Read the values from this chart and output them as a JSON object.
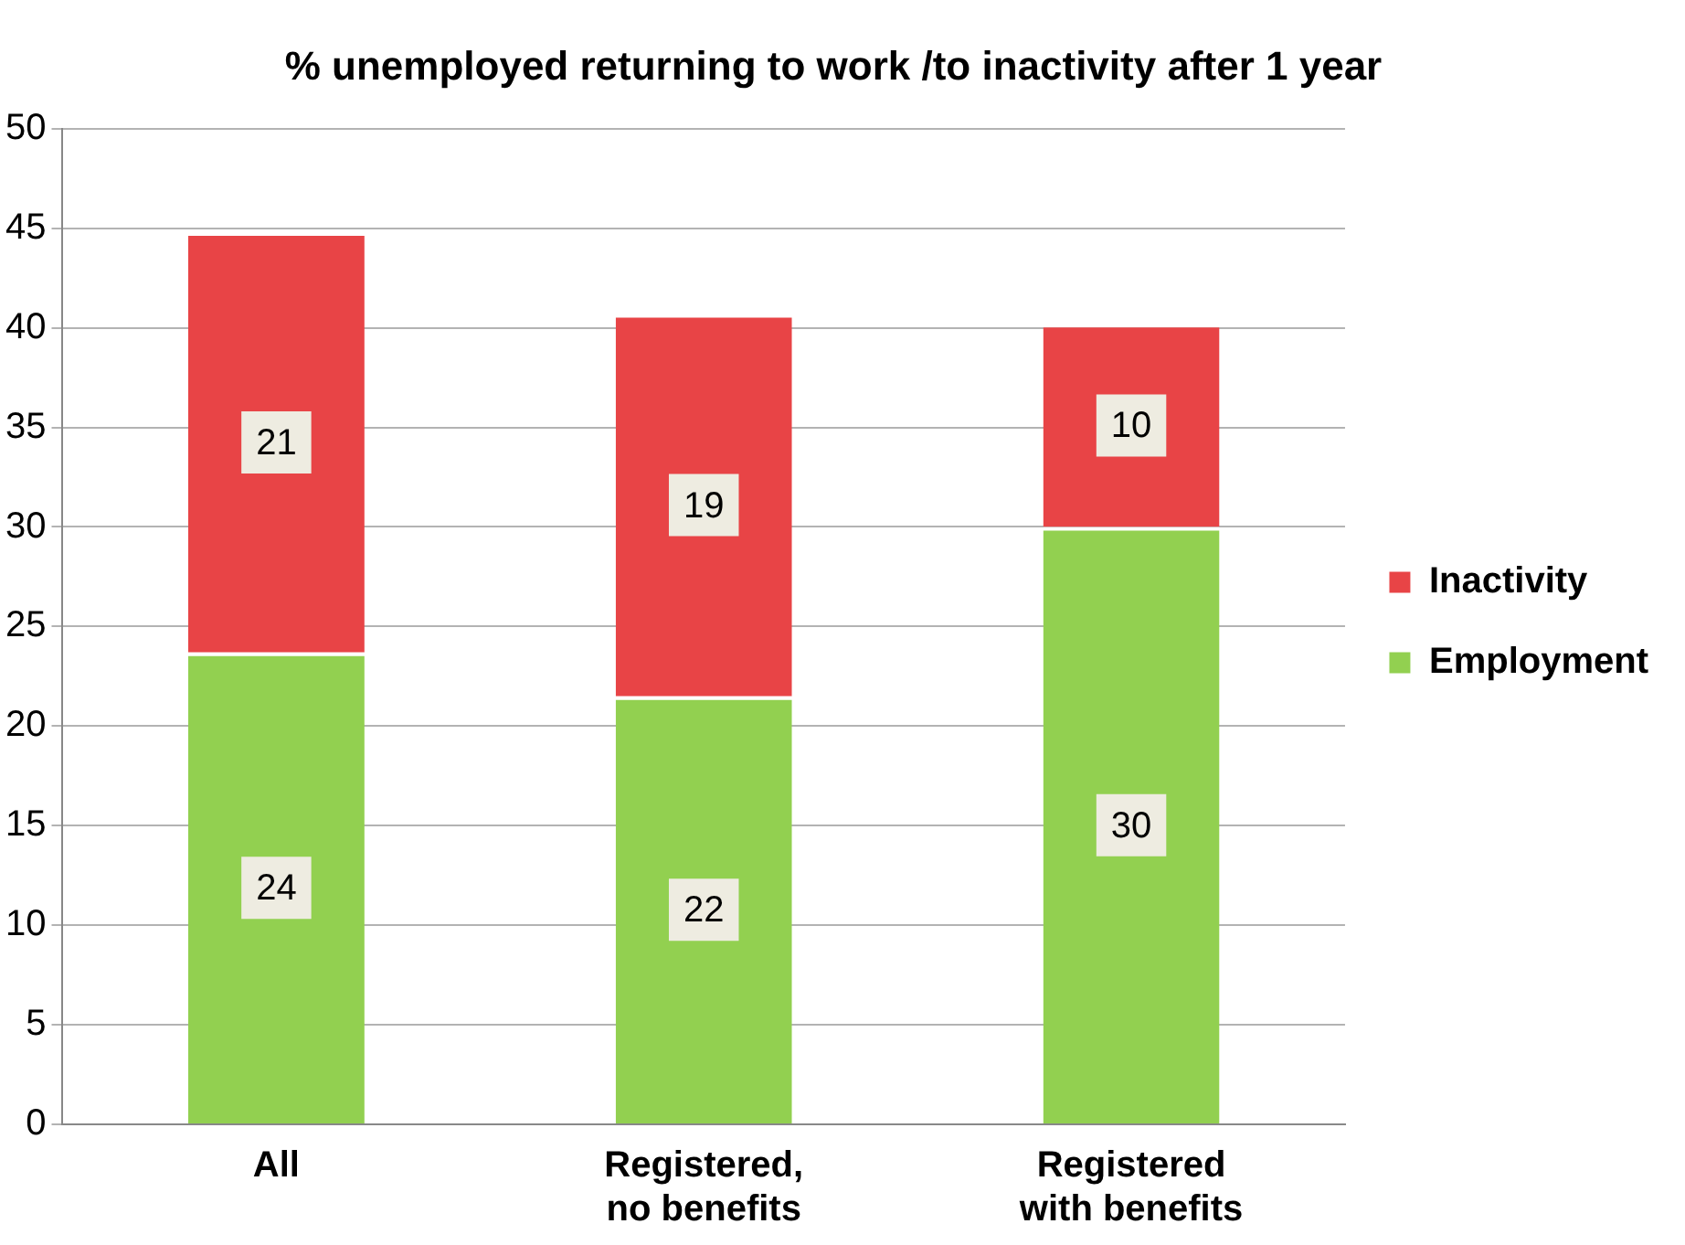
{
  "chart_data": {
    "type": "bar",
    "title": "% unemployed returning to work /to inactivity after 1 year",
    "categories": [
      "All",
      "Registered,\nno benefits",
      "Registered\nwith benefits"
    ],
    "stacked": true,
    "series": [
      {
        "name": "Employment",
        "color": "#92d050",
        "values": [
          23.7,
          21.5,
          30
        ],
        "value_labels": [
          "24",
          "22",
          "30"
        ]
      },
      {
        "name": "Inactivity",
        "color": "#e84446",
        "values": [
          21.1,
          19.2,
          10.2
        ],
        "value_labels": [
          "21",
          "19",
          "10"
        ]
      }
    ],
    "ylim": [
      0,
      50
    ],
    "yticks": [
      0,
      5,
      10,
      15,
      20,
      25,
      30,
      35,
      40,
      45,
      50
    ],
    "grid": "y",
    "legend": "right"
  }
}
